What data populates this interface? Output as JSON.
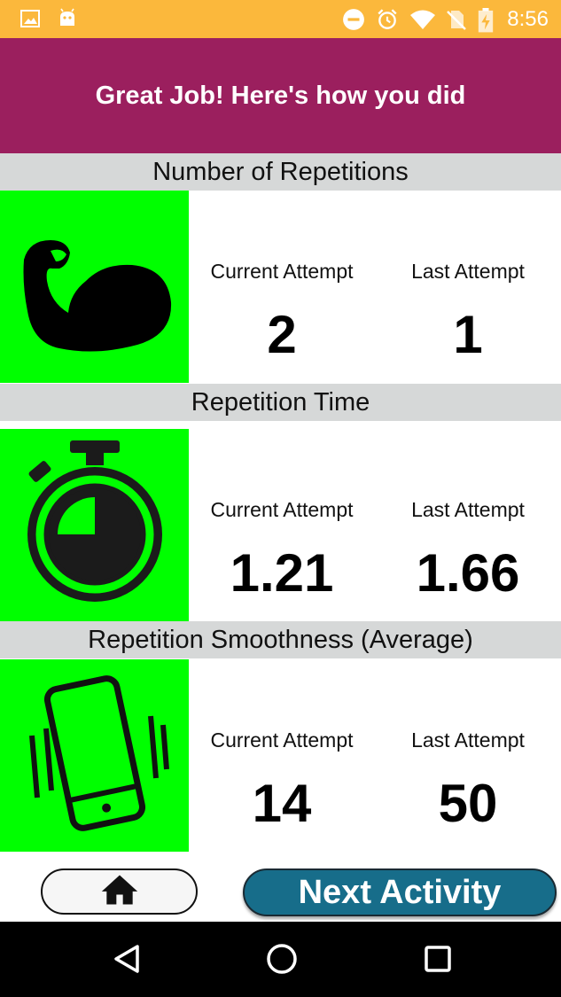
{
  "status_bar": {
    "time": "8:56",
    "left_icons": [
      "image-icon",
      "android-icon"
    ],
    "right_icons": [
      "do-not-disturb-icon",
      "alarm-icon",
      "wifi-icon",
      "no-sim-icon",
      "battery-charging-icon"
    ],
    "background": "#fbb83c"
  },
  "header": {
    "title": "Great Job! Here's how you did",
    "background": "#9b1f5e"
  },
  "sections": [
    {
      "title": "Number of Repetitions",
      "icon": "flexed-bicep-icon",
      "current_label": "Current Attempt",
      "current_value": "2",
      "last_label": "Last Attempt",
      "last_value": "1"
    },
    {
      "title": "Repetition Time",
      "icon": "stopwatch-icon",
      "current_label": "Current Attempt",
      "current_value": "1.21",
      "last_label": "Last Attempt",
      "last_value": "1.66"
    },
    {
      "title": "Repetition Smoothness (Average)",
      "icon": "vibrating-phone-icon",
      "current_label": "Current Attempt",
      "current_value": "14",
      "last_label": "Last Attempt",
      "last_value": "50"
    }
  ],
  "buttons": {
    "home_icon": "home-icon",
    "next_label": "Next Activity"
  },
  "nav": {
    "icons": [
      "back-icon",
      "home-circle-icon",
      "recents-icon"
    ]
  },
  "colors": {
    "tile_green": "#00ff00",
    "section_grey": "#d6d8d8",
    "next_button": "#176d8a"
  }
}
